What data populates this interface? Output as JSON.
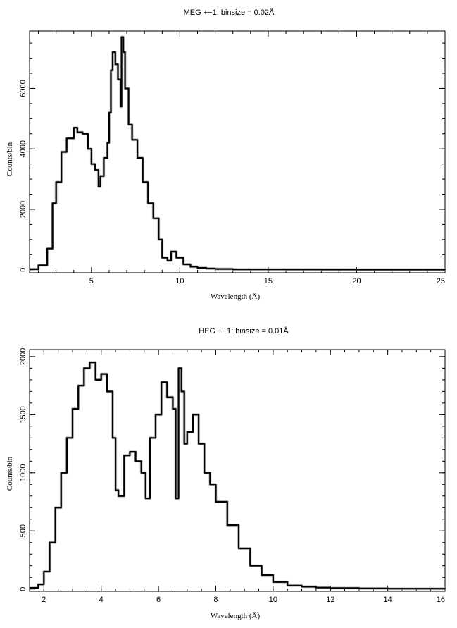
{
  "chart_data": [
    {
      "type": "line",
      "title": "MEG +−1; binsize = 0.02Å",
      "xlabel": "Wavelength (Å)",
      "ylabel": "Counts/bin",
      "xlim": [
        1.5,
        25
      ],
      "ylim": [
        -100,
        7900
      ],
      "xticks": [
        5,
        10,
        15,
        20,
        25
      ],
      "yticks": [
        0,
        2000,
        4000,
        6000
      ],
      "xminor": 1,
      "yminor": 500,
      "grid": false,
      "x": [
        1.5,
        2.0,
        2.5,
        2.8,
        3.0,
        3.3,
        3.6,
        4.0,
        4.2,
        4.5,
        4.8,
        5.0,
        5.2,
        5.4,
        5.5,
        5.7,
        5.9,
        6.0,
        6.1,
        6.2,
        6.35,
        6.5,
        6.65,
        6.7,
        6.8,
        6.9,
        7.1,
        7.3,
        7.6,
        7.9,
        8.2,
        8.5,
        8.8,
        9.0,
        9.3,
        9.5,
        9.8,
        10.2,
        10.6,
        11.0,
        11.5,
        12.0,
        13.0,
        14.0,
        16.0,
        18.0,
        20.0,
        22.0,
        25.0
      ],
      "y": [
        20,
        150,
        700,
        2200,
        2900,
        3900,
        4350,
        4700,
        4550,
        4500,
        4000,
        3500,
        3300,
        2750,
        3100,
        3700,
        4200,
        5200,
        6600,
        7200,
        6800,
        6300,
        5400,
        7700,
        7200,
        6000,
        4800,
        4300,
        3700,
        2900,
        2200,
        1700,
        1000,
        400,
        300,
        600,
        400,
        180,
        100,
        60,
        40,
        25,
        15,
        12,
        10,
        8,
        6,
        5,
        3
      ]
    },
    {
      "type": "line",
      "title": "HEG +−1; binsize = 0.01Å",
      "xlabel": "Wavelength (Å)",
      "ylabel": "Counts/bin",
      "xlim": [
        1.5,
        16
      ],
      "ylim": [
        -20,
        2060
      ],
      "xticks": [
        2,
        4,
        6,
        8,
        10,
        12,
        14,
        16
      ],
      "yticks": [
        0,
        500,
        1000,
        1500,
        2000
      ],
      "xminor": 0.5,
      "yminor": 100,
      "grid": false,
      "x": [
        1.5,
        1.8,
        2.0,
        2.2,
        2.4,
        2.6,
        2.8,
        3.0,
        3.2,
        3.4,
        3.6,
        3.8,
        4.0,
        4.2,
        4.4,
        4.5,
        4.6,
        4.8,
        5.0,
        5.2,
        5.4,
        5.55,
        5.7,
        5.9,
        6.1,
        6.3,
        6.5,
        6.6,
        6.7,
        6.8,
        6.9,
        7.0,
        7.2,
        7.4,
        7.6,
        7.8,
        8.0,
        8.4,
        8.8,
        9.2,
        9.6,
        10.0,
        10.5,
        11.0,
        11.5,
        12.0,
        13.0,
        14.0,
        16.0
      ],
      "y": [
        10,
        40,
        150,
        400,
        700,
        1000,
        1300,
        1550,
        1750,
        1900,
        1950,
        1800,
        1850,
        1700,
        1300,
        850,
        800,
        1150,
        1180,
        1100,
        1000,
        780,
        1300,
        1500,
        1780,
        1650,
        1550,
        780,
        1900,
        1700,
        1250,
        1350,
        1500,
        1250,
        1000,
        900,
        750,
        550,
        350,
        200,
        120,
        60,
        30,
        20,
        12,
        8,
        5,
        3,
        2
      ]
    }
  ]
}
